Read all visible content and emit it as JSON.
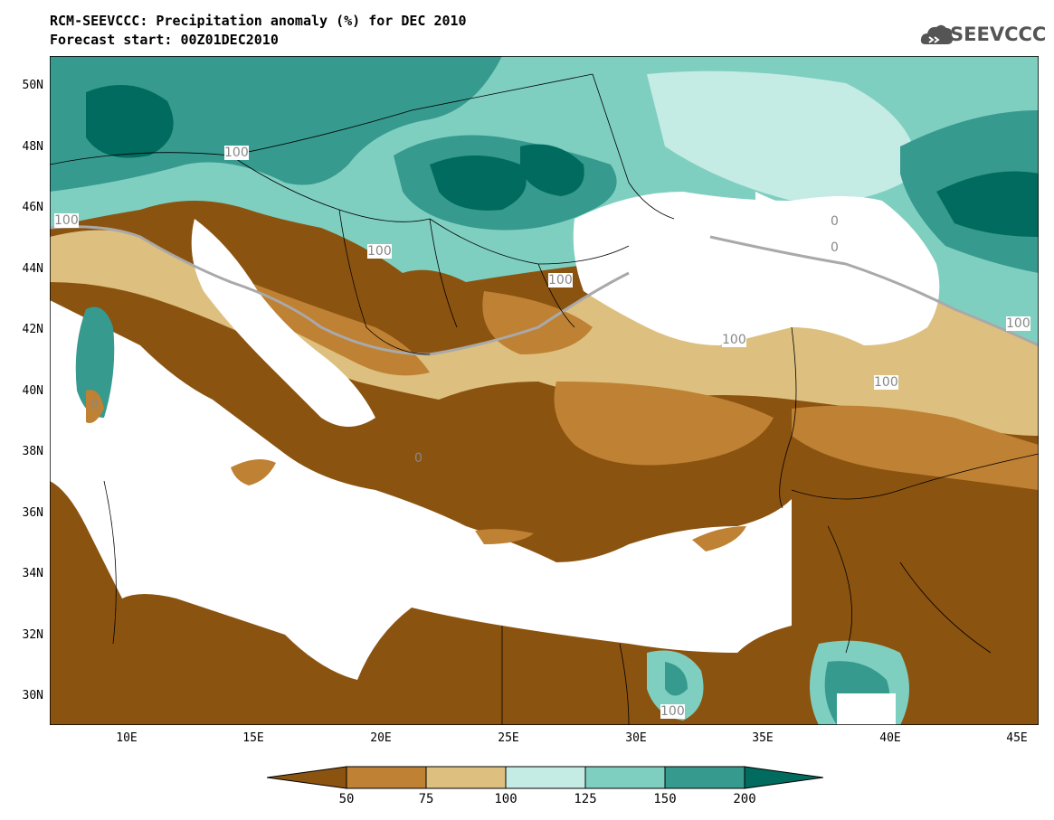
{
  "title": {
    "line1": "RCM-SEEVCCC: Precipitation anomaly (%) for DEC 2010",
    "line2": "Forecast start: 00Z01DEC2010"
  },
  "logo": {
    "text": "SEEVCCC",
    "icon": "cloud-logo-icon"
  },
  "map": {
    "lat_labels": [
      "50N",
      "48N",
      "46N",
      "44N",
      "42N",
      "40N",
      "38N",
      "36N",
      "34N",
      "32N",
      "30N"
    ],
    "lon_labels": [
      "10E",
      "15E",
      "20E",
      "25E",
      "30E",
      "35E",
      "40E",
      "45E"
    ],
    "contour_labels": [
      "100",
      "100",
      "100",
      "100",
      "100",
      "100",
      "100",
      "100",
      "100",
      "100",
      "100"
    ],
    "contour_label_tail": [
      "0",
      "0",
      "0",
      "0"
    ]
  },
  "legend": {
    "labels": [
      "50",
      "75",
      "100",
      "125",
      "150",
      "200"
    ],
    "colors": [
      "#8b5310",
      "#bf8133",
      "#ddc07f",
      "#c5ebe5",
      "#7fcfc1",
      "#369a8e",
      "#006b5e"
    ]
  }
}
